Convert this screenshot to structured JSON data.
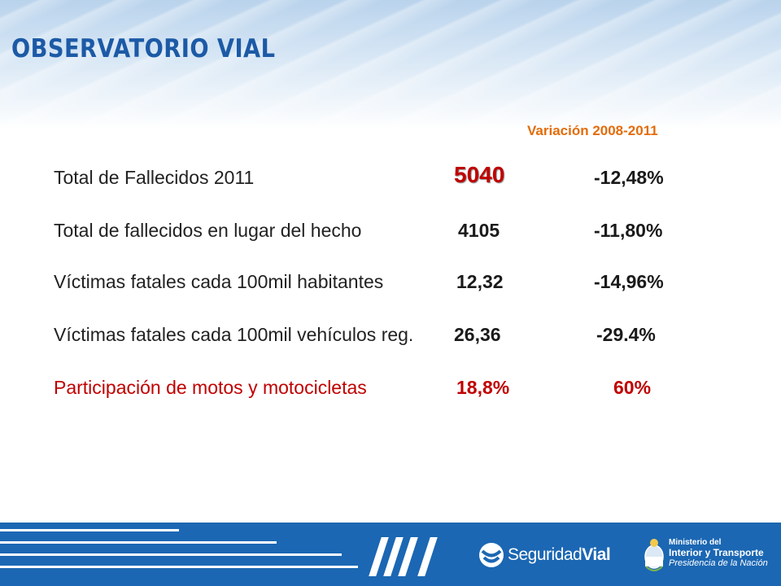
{
  "header": {
    "title": "OBSERVATORIO VIAL"
  },
  "table": {
    "variation_header": "Variación 2008-2011",
    "rows": [
      {
        "label": "Total de Fallecidos 2011",
        "value": "5040",
        "variation": "-12,48%"
      },
      {
        "label": "Total de fallecidos en lugar del hecho",
        "value": "4105",
        "variation": "-11,80%"
      },
      {
        "label": "Víctimas fatales cada 100mil habitantes",
        "value": "12,32",
        "variation": "-14,96%"
      },
      {
        "label": "Víctimas fatales cada 100mil vehículos reg.",
        "value": "26,36",
        "variation": "-29.4%"
      },
      {
        "label": "Participación de motos y motocicletas",
        "value": "18,8%",
        "variation": "60%"
      }
    ]
  },
  "footer": {
    "seguridad_a": "Seguridad",
    "seguridad_b": "Vial",
    "ministry_line1": "Ministerio del",
    "ministry_line2": "Interior y Transporte",
    "ministry_line3": "Presidencia de la Nación"
  },
  "colors": {
    "brand_blue": "#1c5aa6",
    "footer_blue": "#1b67b3",
    "accent_orange": "#e36c0a",
    "highlight_red": "#c00000"
  }
}
